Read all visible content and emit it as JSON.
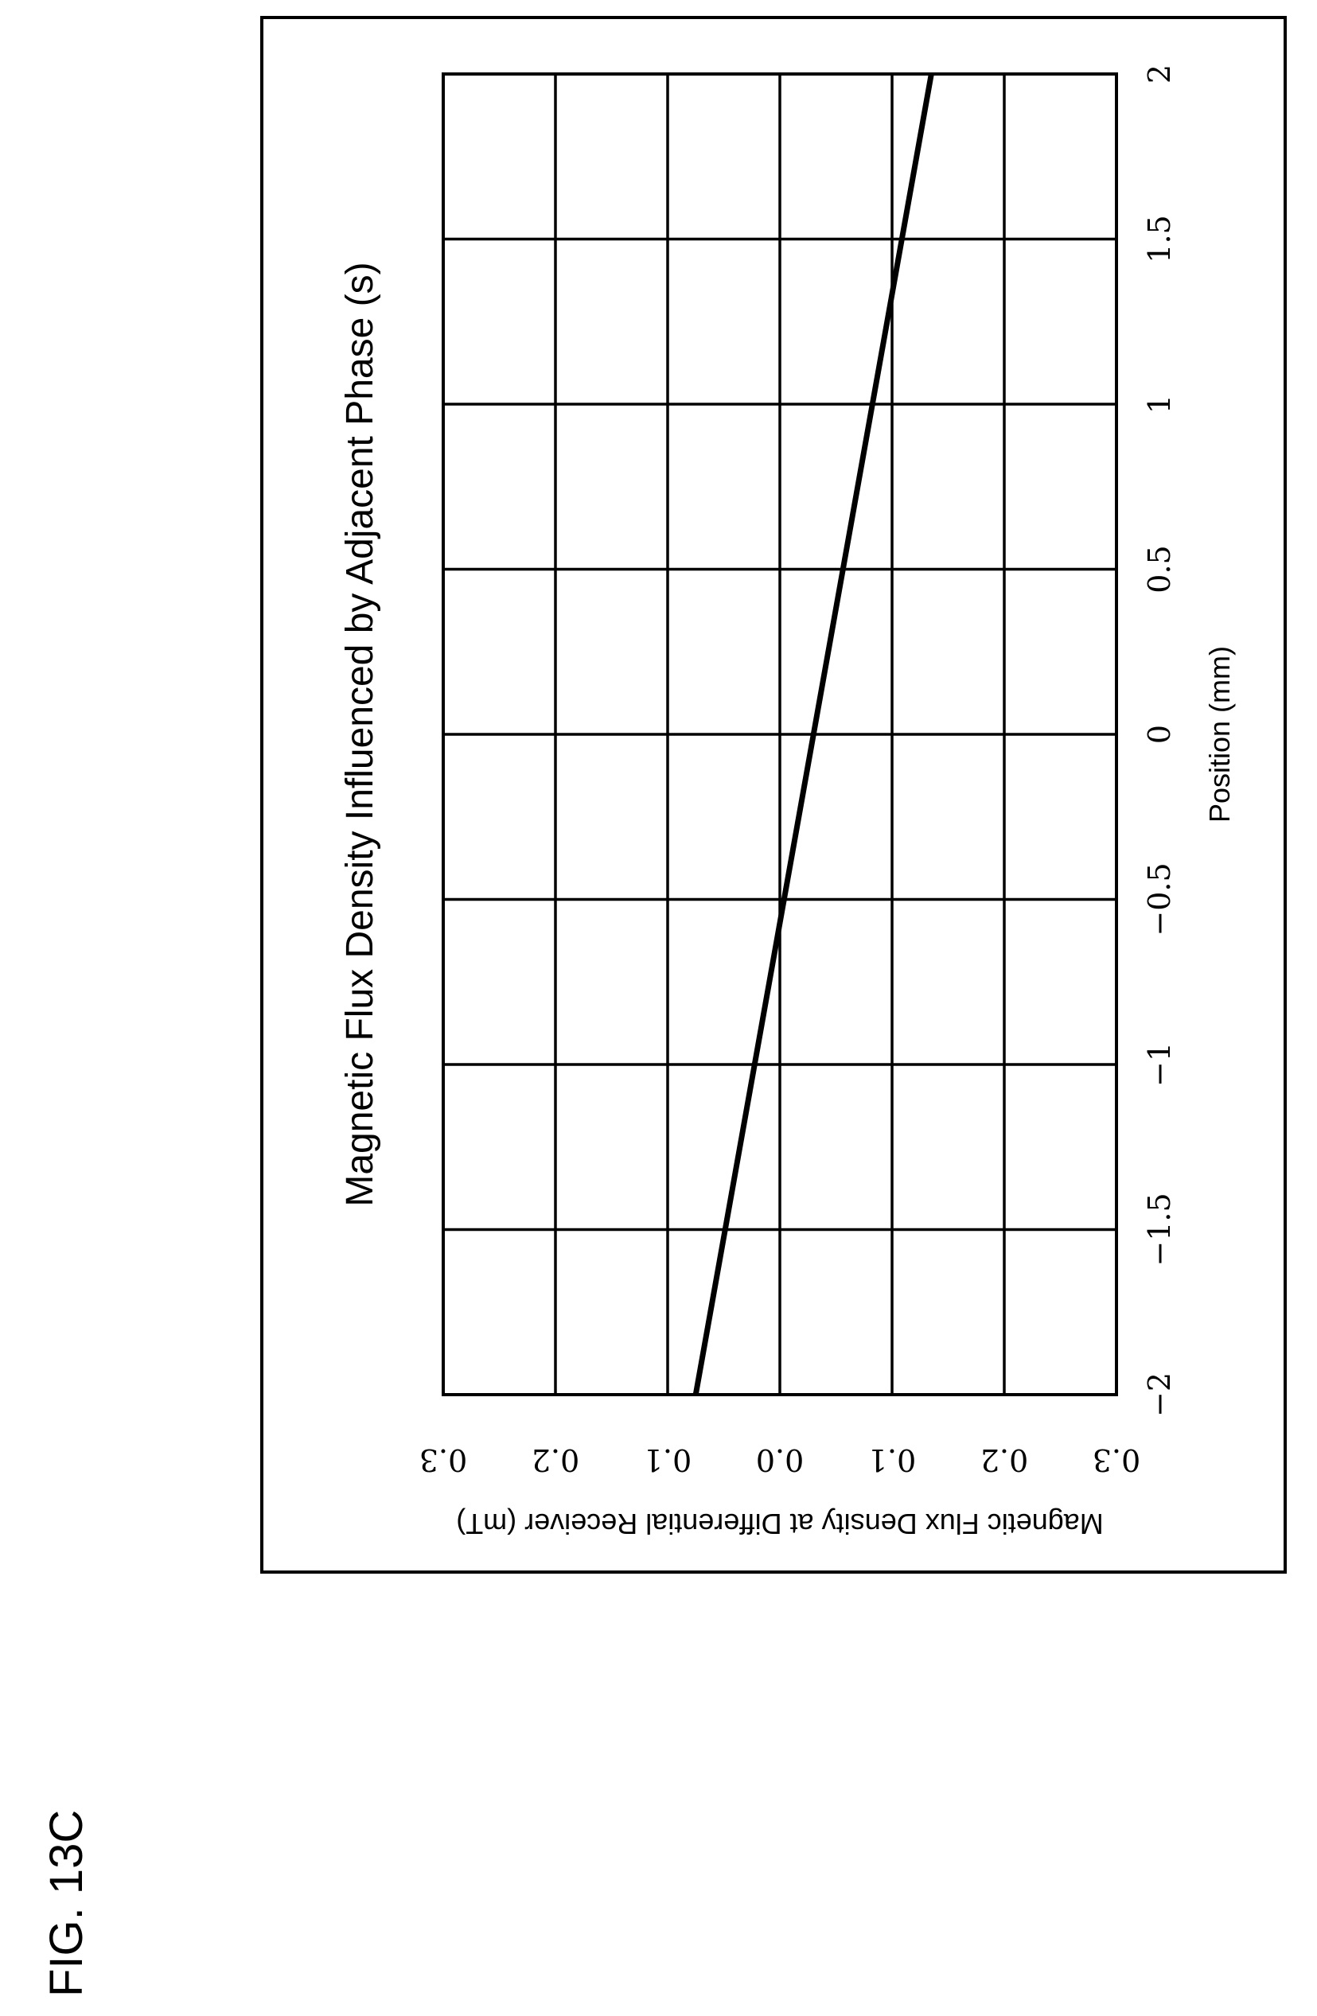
{
  "figure_label": "FIG. 13C",
  "chart_data": {
    "type": "line",
    "title": "Magnetic Flux Density Influenced by Adjacent Phase (s)",
    "xlabel": "Position (mm)",
    "ylabel": "Magnetic Flux Density at Differential Receiver (mT)",
    "xlim": [
      -2,
      2
    ],
    "ylim": [
      -0.3,
      0.3
    ],
    "x_ticks": [
      -2,
      -1.5,
      -1,
      -0.5,
      0,
      0.5,
      1,
      1.5,
      2
    ],
    "x_tick_labels": [
      "−2",
      "−1.5",
      "−1",
      "−0.5",
      "0",
      "0.5",
      "1",
      "1.5",
      "2"
    ],
    "y_ticks": [
      0.3,
      0.2,
      0.1,
      0.0,
      -0.1,
      -0.2,
      -0.3
    ],
    "y_tick_labels": [
      "0.3",
      "0.2",
      "0.1",
      "0.0",
      "0.1",
      "0.2",
      "0.3"
    ],
    "grid": true,
    "series": [
      {
        "x": [
          -2,
          2
        ],
        "y": [
          0.075,
          -0.135
        ]
      }
    ],
    "colors": {
      "line": "#000000",
      "grid": "#000000"
    }
  }
}
